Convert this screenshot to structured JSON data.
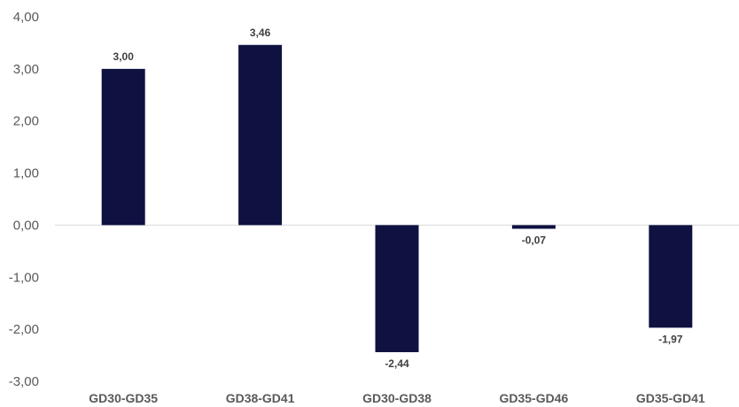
{
  "chart_data": {
    "type": "bar",
    "title": "",
    "xlabel": "",
    "ylabel": "",
    "categories": [
      "GD30-GD35",
      "GD38-GD41",
      "GD30-GD38",
      "GD35-GD46",
      "GD35-GD41"
    ],
    "values": [
      3.0,
      3.46,
      -2.44,
      -0.07,
      -1.97
    ],
    "data_labels": [
      "3,00",
      "3,46",
      "-2,44",
      "-0,07",
      "-1,97"
    ],
    "ylim": [
      -3,
      4
    ],
    "yticks": [
      4,
      3,
      2,
      1,
      0,
      -1,
      -2,
      -3
    ],
    "ytick_labels": [
      "4,00",
      "3,00",
      "2,00",
      "1,00",
      "0,00",
      "-1,00",
      "-2,00",
      "-3,00"
    ],
    "grid": false,
    "legend": "none",
    "bar_color": "#0f1141",
    "zero_line_color": "#d9d9d9"
  }
}
